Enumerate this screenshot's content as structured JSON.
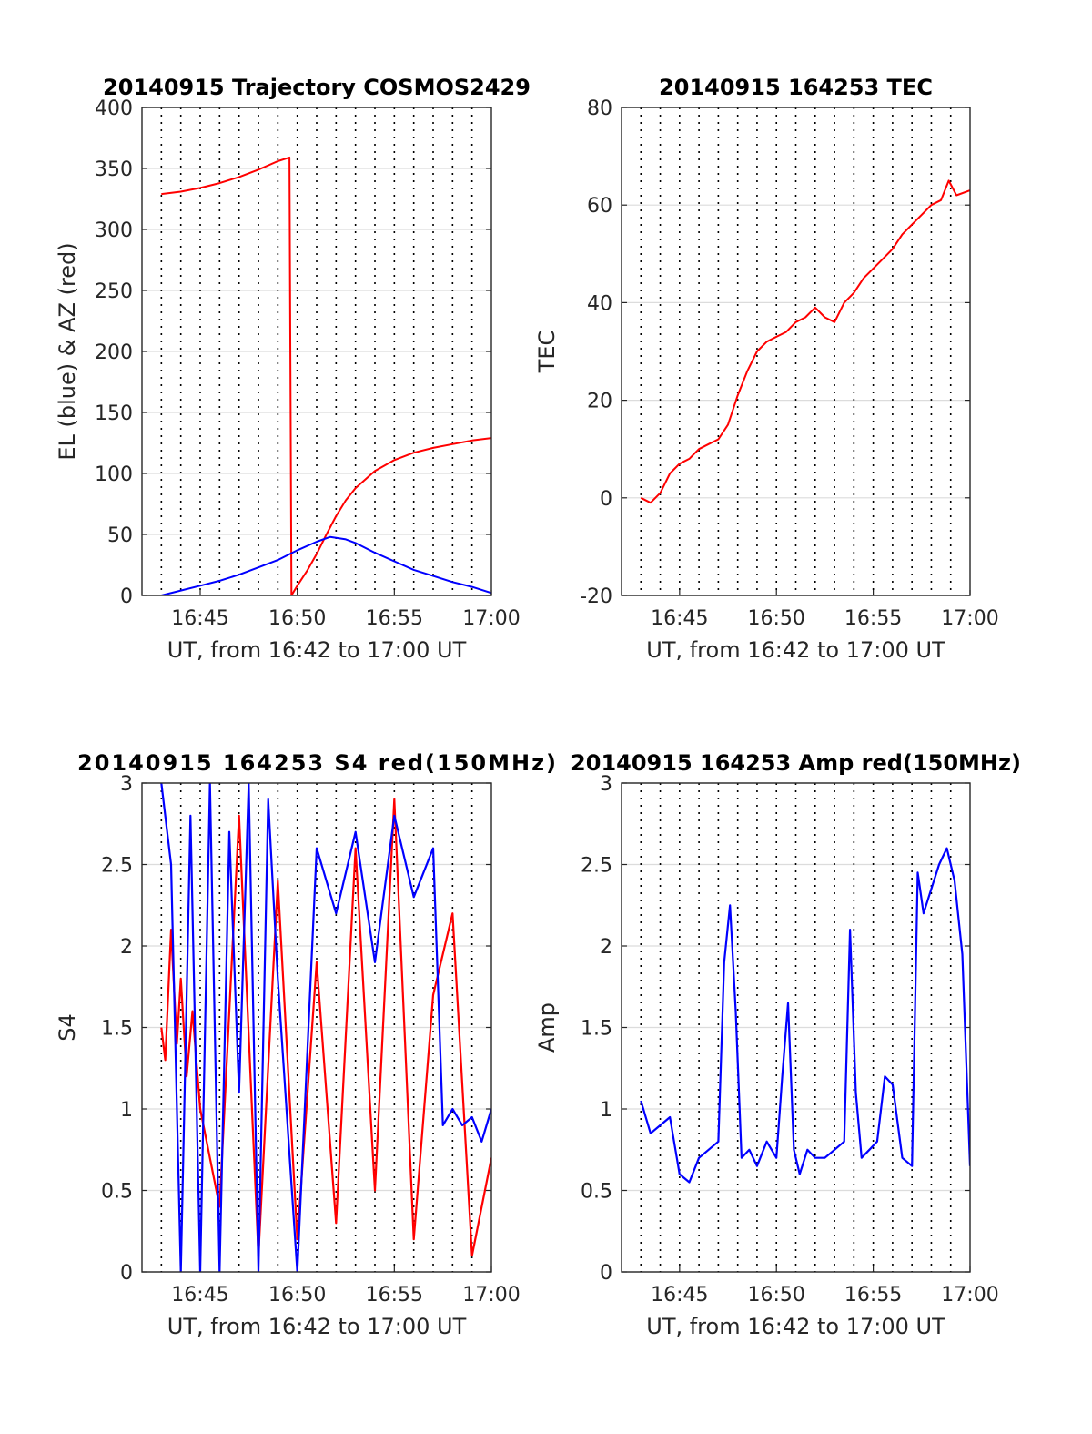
{
  "chart_data": [
    {
      "type": "line",
      "title": "20140915 Trajectory COSMOS2429",
      "xlabel": "UT, from 16:42 to 17:00 UT",
      "ylabel": "EL (blue) & AZ (red)",
      "xlim": [
        16.7,
        17.0
      ],
      "ylim": [
        0,
        400
      ],
      "xticks": [
        "16:45",
        "16:50",
        "16:55",
        "17:00"
      ],
      "yticks": [
        0,
        50,
        100,
        150,
        200,
        250,
        300,
        350,
        400
      ],
      "grid": true,
      "series": [
        {
          "color": "#ff0000",
          "x": [
            "16:43",
            "16:44",
            "16:45",
            "16:46",
            "16:47",
            "16:48",
            "16:49",
            "16:49.6",
            "16:49.7",
            "16:50",
            "16:50.5",
            "16:51",
            "16:51.5",
            "16:52",
            "16:52.5",
            "16:53",
            "16:54",
            "16:55",
            "16:56",
            "16:57",
            "16:58",
            "16:59",
            "17:00"
          ],
          "values": [
            329,
            331,
            334,
            338,
            343,
            349,
            356,
            359,
            0,
            8,
            20,
            34,
            50,
            65,
            78,
            88,
            102,
            111,
            117,
            121,
            124,
            127,
            129
          ]
        },
        {
          "color": "#0000ff",
          "x": [
            "16:43",
            "16:44",
            "16:45",
            "16:46",
            "16:47",
            "16:48",
            "16:49",
            "16:50",
            "16:51",
            "16:51.7",
            "16:52.5",
            "16:53",
            "16:54",
            "16:55",
            "16:56",
            "16:57",
            "16:58",
            "16:59",
            "17:00"
          ],
          "values": [
            0,
            4,
            8,
            12,
            17,
            23,
            29,
            37,
            44,
            48,
            46,
            43,
            35,
            28,
            21,
            16,
            11,
            7,
            2
          ]
        }
      ]
    },
    {
      "type": "line",
      "title": "20140915 164253 TEC",
      "xlabel": "UT, from 16:42 to 17:00 UT",
      "ylabel": "TEC",
      "xlim": [
        16.7,
        17.0
      ],
      "ylim": [
        -20,
        80
      ],
      "xticks": [
        "16:45",
        "16:50",
        "16:55",
        "17:00"
      ],
      "yticks": [
        -20,
        0,
        20,
        40,
        60,
        80
      ],
      "grid": true,
      "series": [
        {
          "color": "#ff0000",
          "x": [
            "16:43",
            "16:43.5",
            "16:44",
            "16:44.5",
            "16:45",
            "16:45.5",
            "16:46",
            "16:46.5",
            "16:47",
            "16:47.5",
            "16:48",
            "16:48.5",
            "16:49",
            "16:49.5",
            "16:50",
            "16:50.5",
            "16:51",
            "16:51.5",
            "16:52",
            "16:52.5",
            "16:53",
            "16:53.5",
            "16:54",
            "16:54.5",
            "16:55",
            "16:55.5",
            "16:56",
            "16:56.5",
            "16:57",
            "16:57.5",
            "16:58",
            "16:58.5",
            "16:58.9",
            "16:59.3",
            "17:00"
          ],
          "values": [
            0,
            -1,
            1,
            5,
            7,
            8,
            10,
            11,
            12,
            15,
            21,
            26,
            30,
            32,
            33,
            34,
            36,
            37,
            39,
            37,
            36,
            40,
            42,
            45,
            47,
            49,
            51,
            54,
            56,
            58,
            60,
            61,
            65,
            62,
            63
          ]
        }
      ]
    },
    {
      "type": "line",
      "title": "20140915 164253 S4 red(150MHz)",
      "xlabel": "UT, from 16:42 to 17:00 UT",
      "ylabel": "S4",
      "xlim": [
        16.7,
        17.0
      ],
      "ylim": [
        0,
        3
      ],
      "xticks": [
        "16:45",
        "16:50",
        "16:55",
        "17:00"
      ],
      "yticks": [
        0,
        0.5,
        1,
        1.5,
        2,
        2.5,
        3
      ],
      "grid": true,
      "series": [
        {
          "color": "#ff0000",
          "x": [
            "16:43",
            "16:43.2",
            "16:43.5",
            "16:43.8",
            "16:44",
            "16:44.3",
            "16:44.6",
            "16:45",
            "16:46",
            "16:47",
            "16:48",
            "16:49",
            "16:50",
            "16:51",
            "16:52",
            "16:53",
            "16:54",
            "16:55",
            "16:56",
            "16:57",
            "16:58",
            "16:59",
            "17:00"
          ],
          "values": [
            1.5,
            1.3,
            2.1,
            1.4,
            1.8,
            1.2,
            1.6,
            1.0,
            0.4,
            2.8,
            0.1,
            2.4,
            0.2,
            1.9,
            0.3,
            2.6,
            0.5,
            2.9,
            0.2,
            1.7,
            2.2,
            0.1,
            0.7
          ]
        },
        {
          "color": "#0000ff",
          "x": [
            "16:43",
            "16:43.5",
            "16:44",
            "16:44.5",
            "16:45",
            "16:45.5",
            "16:46",
            "16:46.5",
            "16:47",
            "16:47.5",
            "16:48",
            "16:48.5",
            "16:49",
            "16:50",
            "16:51",
            "16:52",
            "16:53",
            "16:54",
            "16:55",
            "16:56",
            "16:57",
            "16:57.5",
            "16:58",
            "16:58.5",
            "16:59",
            "16:59.5",
            "17:00"
          ],
          "values": [
            3.0,
            2.5,
            0.0,
            2.8,
            0.0,
            3.0,
            0.0,
            2.7,
            1.1,
            3.0,
            0.0,
            2.9,
            1.8,
            0.0,
            2.6,
            2.2,
            2.7,
            1.9,
            2.8,
            2.3,
            2.6,
            0.9,
            1.0,
            0.9,
            0.95,
            0.8,
            1.0
          ]
        }
      ]
    },
    {
      "type": "line",
      "title": "20140915 164253 Amp red(150MHz)",
      "xlabel": "UT, from 16:42 to 17:00 UT",
      "ylabel": "Amp",
      "xlim": [
        16.7,
        17.0
      ],
      "ylim": [
        0,
        3
      ],
      "xticks": [
        "16:45",
        "16:50",
        "16:55",
        "17:00"
      ],
      "yticks": [
        0,
        0.5,
        1,
        1.5,
        2,
        2.5,
        3
      ],
      "grid": true,
      "series": [
        {
          "color": "#0000ff",
          "x": [
            "16:43",
            "16:43.5",
            "16:44",
            "16:44.5",
            "16:45",
            "16:45.5",
            "16:46",
            "16:46.5",
            "16:47",
            "16:47.3",
            "16:47.6",
            "16:47.9",
            "16:48.2",
            "16:48.6",
            "16:49",
            "16:49.5",
            "16:50",
            "16:50.3",
            "16:50.6",
            "16:50.9",
            "16:51.2",
            "16:51.6",
            "16:52",
            "16:52.5",
            "16:53",
            "16:53.5",
            "16:53.8",
            "16:54.1",
            "16:54.4",
            "16:54.8",
            "16:55.2",
            "16:55.6",
            "16:56",
            "16:56.5",
            "16:57",
            "16:57.3",
            "16:57.6",
            "16:58",
            "16:58.4",
            "16:58.8",
            "16:59.2",
            "16:59.6",
            "17:00"
          ],
          "values": [
            1.05,
            0.85,
            0.9,
            0.95,
            0.6,
            0.55,
            0.7,
            0.75,
            0.8,
            1.9,
            2.25,
            1.6,
            0.7,
            0.75,
            0.65,
            0.8,
            0.7,
            1.2,
            1.65,
            0.75,
            0.6,
            0.75,
            0.7,
            0.7,
            0.75,
            0.8,
            2.1,
            1.1,
            0.7,
            0.75,
            0.8,
            1.2,
            1.15,
            0.7,
            0.65,
            2.45,
            2.2,
            2.35,
            2.5,
            2.6,
            2.4,
            1.95,
            0.65
          ]
        }
      ]
    }
  ]
}
